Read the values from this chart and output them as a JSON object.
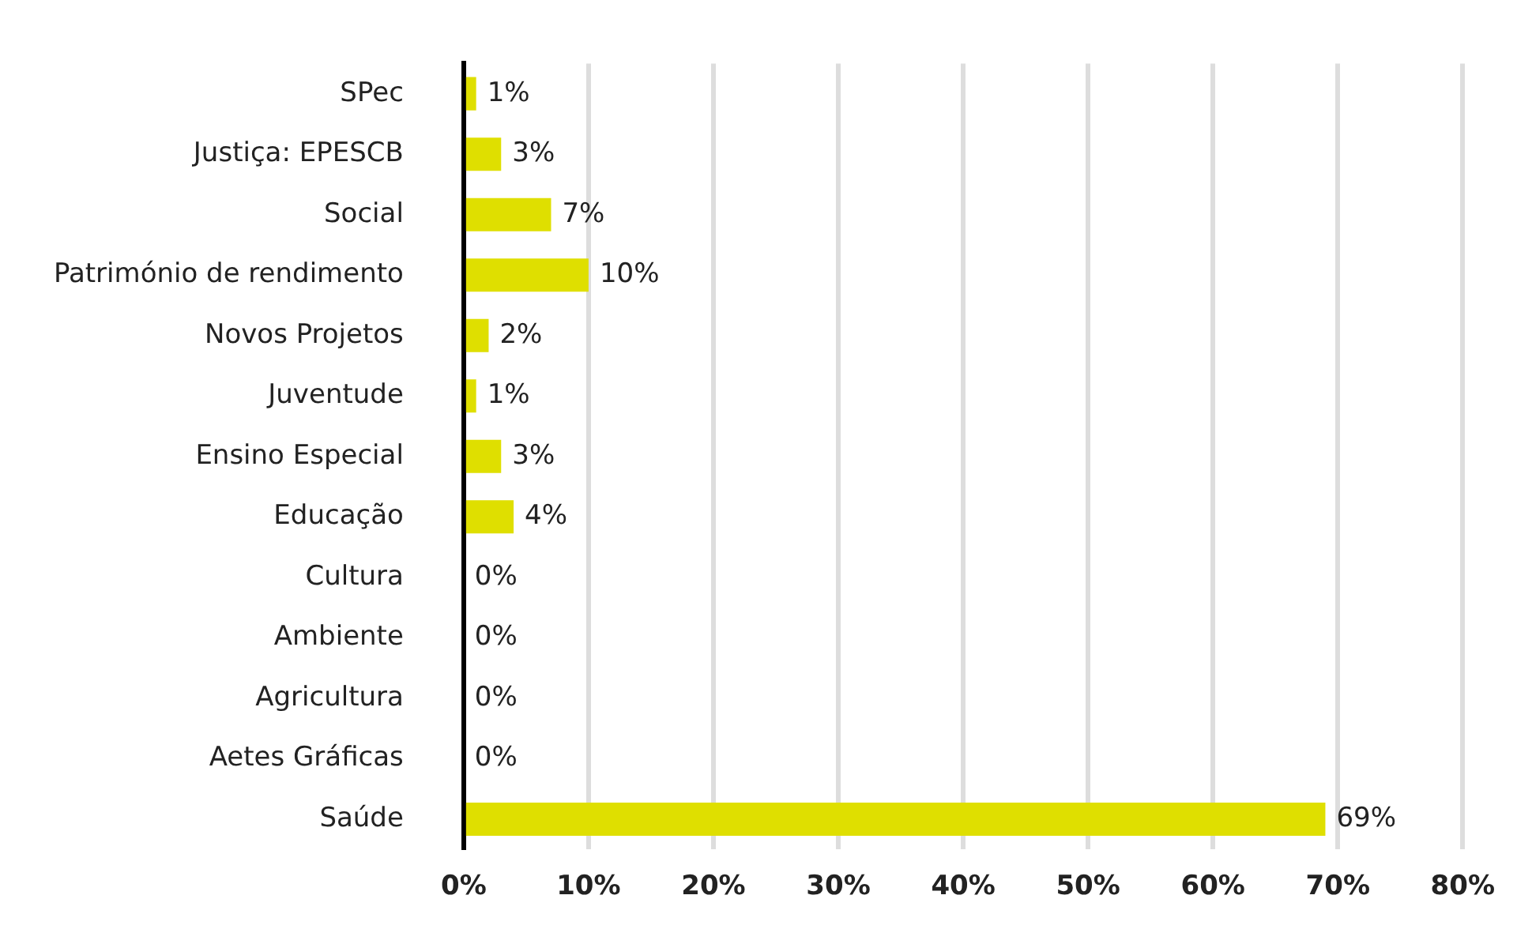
{
  "chart_data": {
    "type": "bar",
    "orientation": "horizontal",
    "categories": [
      "SPec",
      "Justiça: EPESCB",
      "Social",
      "Património de rendimento",
      "Novos Projetos",
      "Juventude",
      "Ensino Especial",
      "Educação",
      "Cultura",
      "Ambiente",
      "Agricultura",
      "Aetes Gráficas",
      "Saúde"
    ],
    "values": [
      1,
      3,
      7,
      10,
      2,
      1,
      3,
      4,
      0,
      0,
      0,
      0,
      69
    ],
    "value_labels": [
      "1%",
      "3%",
      "7%",
      "10%",
      "2%",
      "1%",
      "3%",
      "4%",
      "0%",
      "0%",
      "0%",
      "0%",
      "69%"
    ],
    "color": "#dfdf00",
    "xlim": [
      0,
      80
    ],
    "xticks": [
      {
        "value": 0,
        "label": "0%"
      },
      {
        "value": 10,
        "label": "10%"
      },
      {
        "value": 20,
        "label": "20%"
      },
      {
        "value": 30,
        "label": "30%"
      },
      {
        "value": 40,
        "label": "40%"
      },
      {
        "value": 50,
        "label": "50%"
      },
      {
        "value": 60,
        "label": "60%"
      },
      {
        "value": 70,
        "label": "70%"
      },
      {
        "value": 80,
        "label": "80%"
      }
    ],
    "grid": "x"
  }
}
